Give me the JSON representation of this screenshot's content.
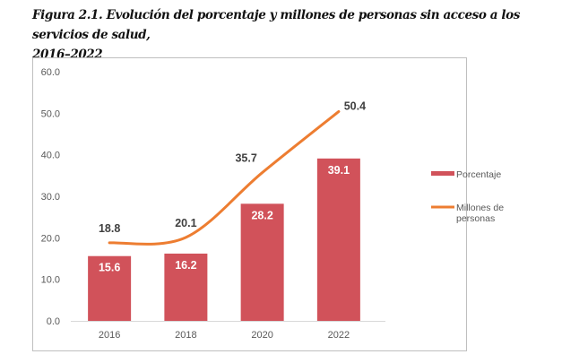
{
  "figure": {
    "caption_line1": "Figura 2.1. Evolución del porcentaje y millones de personas sin acceso a los servicios de salud,",
    "caption_line2": "2016–2022"
  },
  "chart_data": {
    "type": "bar",
    "title": "Evolución del porcentaje y millones de personas sin acceso a los servicios de salud, 2016–2022",
    "xlabel": "",
    "ylabel": "",
    "categories": [
      "2016",
      "2018",
      "2020",
      "2022"
    ],
    "ylim": [
      0,
      60
    ],
    "yticks": [
      0,
      10,
      20,
      30,
      40,
      50,
      60
    ],
    "ytick_labels": [
      "0.0",
      "10.0",
      "20.0",
      "30.0",
      "40.0",
      "50.0",
      "60.0"
    ],
    "grid": false,
    "legend_position": "right",
    "series": [
      {
        "name": "Porcentaje",
        "type": "bar",
        "color": "#d1525a",
        "values": [
          15.6,
          16.2,
          28.2,
          39.1
        ],
        "labels": [
          "15.6",
          "16.2",
          "28.2",
          "39.1"
        ]
      },
      {
        "name": "Millones de personas",
        "type": "line",
        "smooth": true,
        "color": "#ed7d31",
        "values": [
          18.8,
          20.1,
          35.7,
          50.4
        ],
        "labels": [
          "18.8",
          "20.1",
          "35.7",
          "50.4"
        ]
      }
    ],
    "legend": [
      {
        "label_lines": [
          "Porcentaje"
        ],
        "color": "#d1525a",
        "kind": "bar"
      },
      {
        "label_lines": [
          "Millones de",
          "personas"
        ],
        "color": "#ed7d31",
        "kind": "line"
      }
    ]
  }
}
